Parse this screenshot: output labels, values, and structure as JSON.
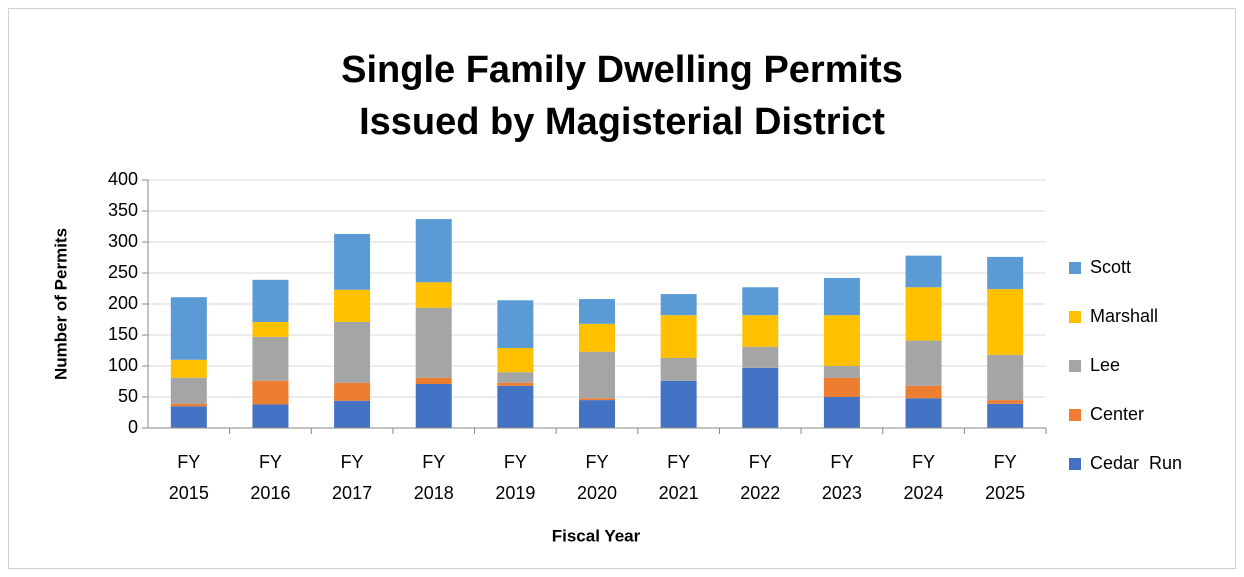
{
  "chart_data": {
    "type": "stacked_bar",
    "title": "Single Family Dwelling Permits\nIssued by Magisterial District",
    "x_label": "Fiscal Year",
    "y_label": "Number of Permits",
    "categories": [
      "FY\n2015",
      "FY\n2016",
      "FY\n2017",
      "FY\n2018",
      "FY\n2019",
      "FY\n2020",
      "FY\n2021",
      "FY\n2022",
      "FY\n2023",
      "FY\n2024",
      "FY\n2025"
    ],
    "series": [
      {
        "name": "Cedar  Run",
        "color": "#4472c4",
        "values": [
          35,
          38,
          44,
          71,
          68,
          45,
          76,
          97,
          50,
          48,
          39
        ]
      },
      {
        "name": "Center",
        "color": "#ed7d31",
        "values": [
          4,
          38,
          29,
          10,
          5,
          3,
          0,
          0,
          31,
          20,
          6
        ]
      },
      {
        "name": "Lee",
        "color": "#a5a5a5",
        "values": [
          42,
          71,
          98,
          113,
          17,
          75,
          37,
          34,
          19,
          73,
          73
        ]
      },
      {
        "name": "Marshall",
        "color": "#ffc000",
        "values": [
          29,
          24,
          52,
          41,
          39,
          45,
          69,
          51,
          82,
          86,
          106
        ]
      },
      {
        "name": "Scott",
        "color": "#5b9bd5",
        "values": [
          101,
          68,
          90,
          102,
          77,
          40,
          34,
          45,
          60,
          51,
          52
        ]
      }
    ],
    "ylim": [
      0,
      400
    ],
    "yticks": [
      0,
      50,
      100,
      150,
      200,
      250,
      300,
      350,
      400
    ],
    "grid": true,
    "legend": "right"
  }
}
